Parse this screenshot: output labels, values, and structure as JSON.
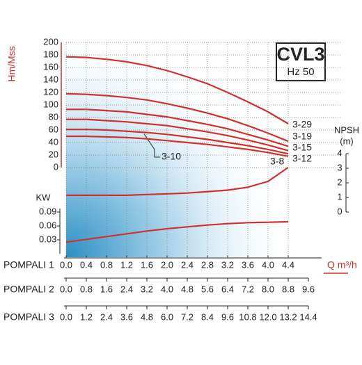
{
  "chart_data": {
    "type": "line",
    "title": "CVL3",
    "subtitle": "Hz 50",
    "y_label": "Hm/Mss",
    "x_label": "Q m³/h",
    "color": "#d0312d",
    "grid": true,
    "ylim": [
      0,
      200
    ],
    "yticks": [
      0,
      20,
      40,
      60,
      80,
      100,
      120,
      140,
      160,
      180,
      200
    ],
    "x_scales": [
      {
        "name": "POMPALI 1",
        "xlim": [
          0,
          4.4
        ],
        "ticks": [
          {
            "value": 0,
            "label": "0.0"
          },
          0.4,
          0.8,
          1.2,
          1.6,
          {
            "value": 2,
            "label": "2.0"
          },
          2.4,
          2.8,
          3.2,
          3.6,
          {
            "value": 4,
            "label": "4.0"
          },
          4.4
        ]
      },
      {
        "name": "POMPALI 2",
        "xlim": [
          0,
          8.8
        ],
        "ticks": [
          {
            "value": 0,
            "label": "0.0"
          },
          0.8,
          1.6,
          2.4,
          3.2,
          {
            "value": 4,
            "label": "4.0"
          },
          4.8,
          5.6,
          6.4,
          7.2,
          {
            "value": 8,
            "label": "8.0"
          },
          8.8,
          9.6
        ]
      },
      {
        "name": "POMPALI 3",
        "xlim": [
          0,
          13.2
        ],
        "ticks": [
          {
            "value": 0,
            "label": "0.0"
          },
          1.2,
          2.4,
          3.6,
          4.8,
          {
            "value": 6,
            "label": "6.0"
          },
          7.2,
          8.4,
          9.6,
          10.8,
          {
            "value": 12,
            "label": "12.0"
          },
          13.2,
          14.4
        ]
      }
    ],
    "x": [
      0,
      0.4,
      0.8,
      1.2,
      1.6,
      2.0,
      2.4,
      2.8,
      3.2,
      3.6,
      4.0,
      4.4
    ],
    "series": [
      {
        "name": "3-29",
        "values": [
          177,
          176,
          173,
          169,
          163,
          155,
          145,
          134,
          120,
          105,
          89,
          70
        ]
      },
      {
        "name": "3-19",
        "values": [
          118,
          117,
          115,
          112,
          108,
          102,
          95,
          87,
          78,
          67,
          55,
          42
        ]
      },
      {
        "name": "3-15",
        "values": [
          93,
          93,
          91,
          89,
          85,
          81,
          75,
          69,
          62,
          53,
          44,
          34
        ]
      },
      {
        "name": "3-12",
        "values": [
          77,
          77,
          75,
          73,
          70,
          67,
          62,
          57,
          51,
          44,
          36,
          27
        ]
      },
      {
        "name": "3-10",
        "values": [
          61,
          61,
          60,
          58,
          56,
          53,
          49,
          45,
          40,
          35,
          29,
          22
        ]
      },
      {
        "name": "3-8",
        "values": [
          50,
          50,
          49,
          48,
          46,
          43,
          40,
          37,
          33,
          29,
          24,
          18
        ]
      }
    ],
    "npsh": {
      "label": "NPSH",
      "unit": "(m)",
      "ylim": [
        0,
        4
      ],
      "yticks": [
        0,
        1,
        2,
        3,
        4
      ],
      "values": [
        1.15,
        1.15,
        1.15,
        1.15,
        1.2,
        1.25,
        1.3,
        1.4,
        1.5,
        1.7,
        2.1,
        3.05
      ]
    },
    "power": {
      "label": "KW",
      "ylim": [
        0,
        0.09
      ],
      "yticks": [
        0.03,
        0.06,
        0.09
      ],
      "values": [
        0.025,
        0.031,
        0.037,
        0.043,
        0.049,
        0.054,
        0.058,
        0.062,
        0.065,
        0.067,
        0.068,
        0.069
      ]
    }
  }
}
